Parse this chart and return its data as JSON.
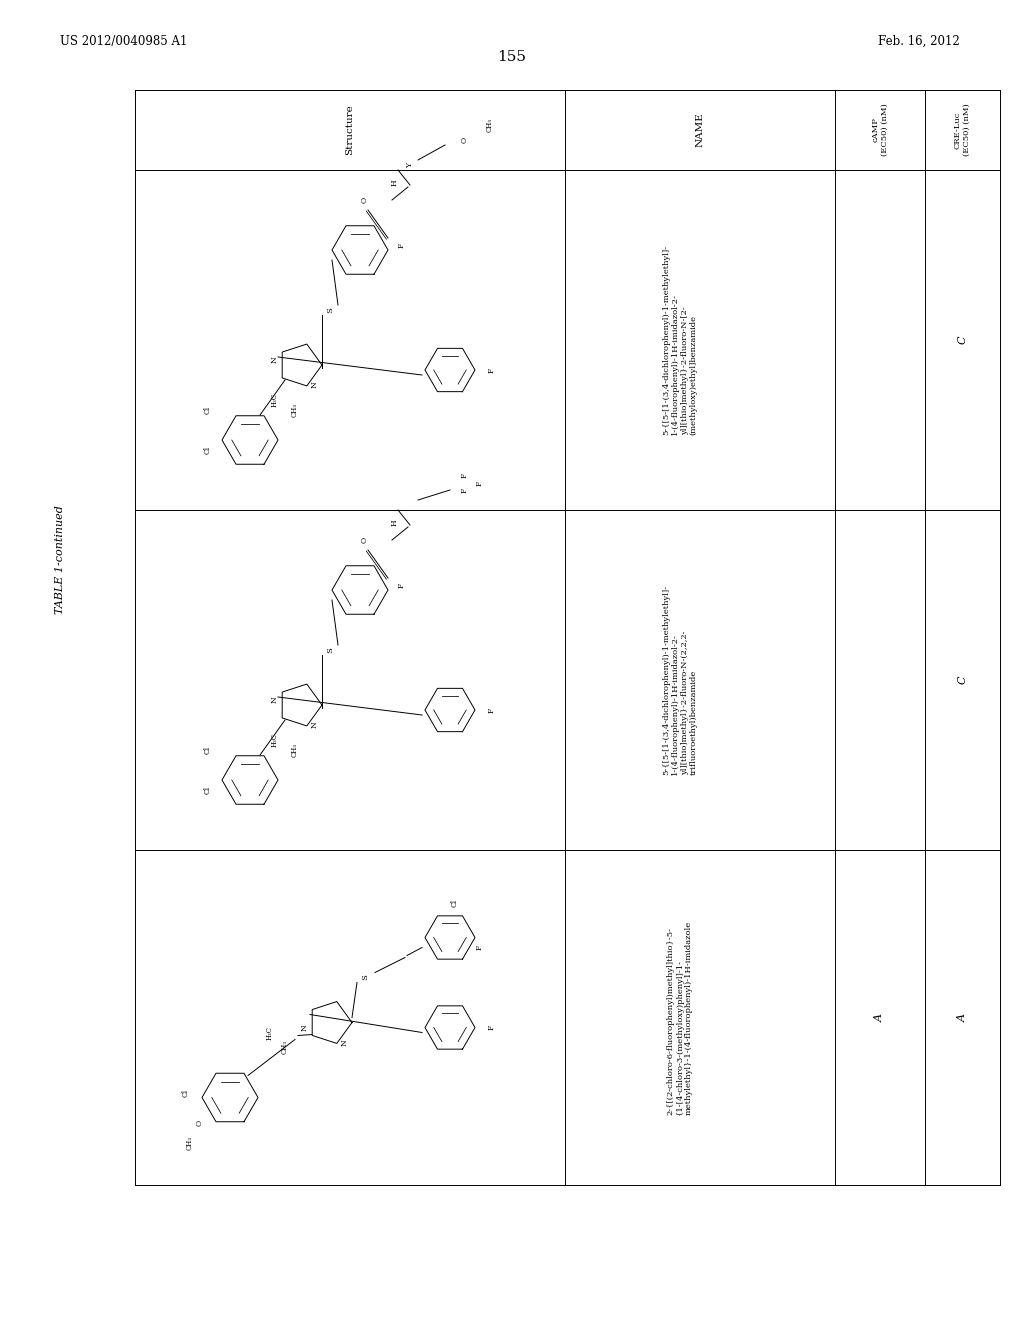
{
  "page_number": "155",
  "patent_number": "US 2012/0040985 A1",
  "patent_date": "Feb. 16, 2012",
  "table_title": "TABLE 1-continued",
  "background_color": "#ffffff",
  "text_color": "#000000",
  "col_headers": [
    "Structure",
    "NAME",
    "cAMP\n(EC50) (nM)",
    "CRE-Luc\n(EC50) (nM)"
  ],
  "row1_name": "5-{[5-[1-(3,4-dichlorophenyl)-1-methylethyl]-\n1-(4-fluorophenyl)-1H-imidazol-2-\nyl][thio]methyl}-2-fluoro-N-[2-\n(methyloxy)ethyl]benzamide",
  "row2_name": "5-{[5-[1-(3,4-dichlorophenyl)-1-methylethyl]-\n1-(4-fluorophenyl)-1H-imidazol-2-\nyl][thio]methyl}-2-fluoro-N-(2,2,2-\ntrifluoroethyl)benzamide",
  "row3_name": "2-{[(2-chloro-6-fluorophenyl)methyl]thio}-5-\n{1-[4-chloro-3-(methyloxy)phenyl]-1-\nmethylethyl}-1-(4-fluorophenyl)-1H-imidazole",
  "row1_cAMP": "",
  "row2_cAMP": "",
  "row3_cAMP": "A",
  "row1_CRE": "C",
  "row2_CRE": "C",
  "row3_CRE": "A"
}
